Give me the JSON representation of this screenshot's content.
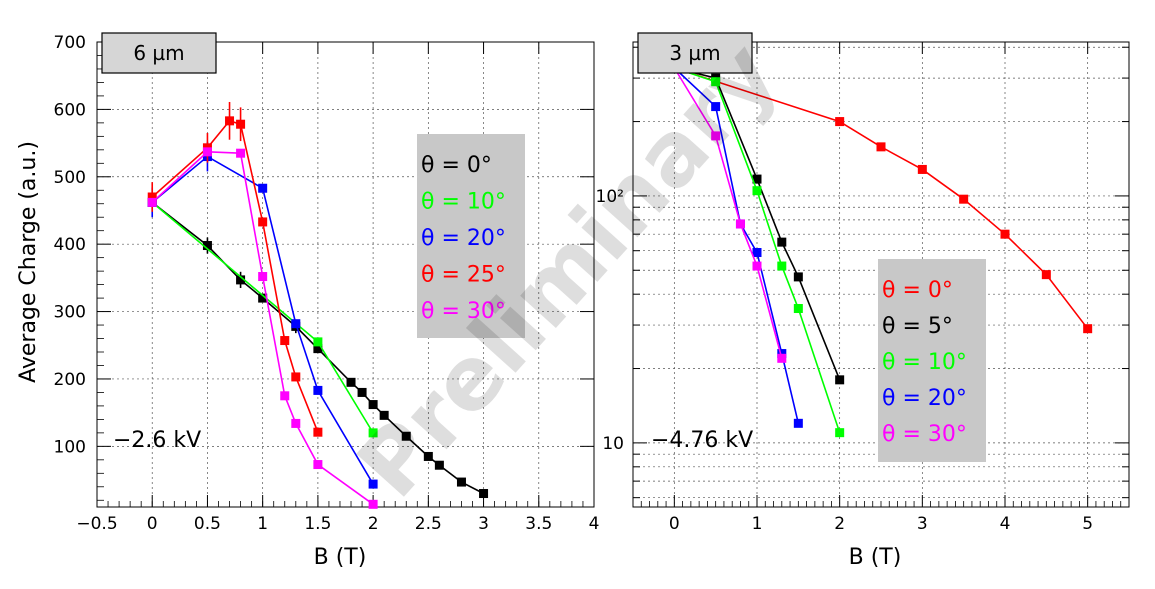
{
  "watermark": "Preliminary",
  "chart_data": [
    {
      "type": "line",
      "tag": "6 µm",
      "annotation": "−2.6 kV",
      "xlabel": "B (T)",
      "ylabel": "Average Charge (a.u.)",
      "xlim": [
        -0.5,
        4
      ],
      "ylim": [
        10,
        700
      ],
      "y_scale": "linear",
      "x_ticks": [
        "−0.5",
        "0",
        "0.5",
        "1",
        "1.5",
        "2",
        "2.5",
        "3",
        "3.5",
        "4"
      ],
      "y_ticks": [
        "100",
        "200",
        "300",
        "400",
        "500",
        "600",
        "700"
      ],
      "grid": true,
      "legend_position": "right",
      "series": [
        {
          "name": "θ = 0°",
          "color": "#000000",
          "x": [
            0,
            0.5,
            0.8,
            1.0,
            1.3,
            1.5,
            1.8,
            1.9,
            2.0,
            2.1,
            2.3,
            2.5,
            2.6,
            2.8,
            3.0
          ],
          "y": [
            462,
            398,
            347,
            320,
            278,
            245,
            195,
            180,
            162,
            146,
            115,
            85,
            72,
            47,
            30
          ],
          "err": [
            0,
            12,
            12,
            0,
            10,
            0,
            0,
            0,
            0,
            0,
            0,
            0,
            0,
            0,
            0
          ]
        },
        {
          "name": "θ = 10°",
          "color": "#00ff00",
          "x": [
            0,
            1.5,
            2.0
          ],
          "y": [
            462,
            255,
            120
          ],
          "err": [
            0,
            0,
            0
          ]
        },
        {
          "name": "θ = 20°",
          "color": "#0000ff",
          "x": [
            0,
            0.5,
            1.0,
            1.3,
            1.5,
            2.0
          ],
          "y": [
            462,
            530,
            483,
            282,
            183,
            44
          ],
          "err": [
            22,
            22,
            0,
            0,
            0,
            0
          ]
        },
        {
          "name": "θ = 25°",
          "color": "#ff0000",
          "x": [
            0,
            0.5,
            0.7,
            0.8,
            1.0,
            1.2,
            1.3,
            1.5
          ],
          "y": [
            470,
            543,
            583,
            578,
            433,
            257,
            203,
            121
          ],
          "err": [
            22,
            22,
            28,
            25,
            0,
            0,
            0,
            0
          ]
        },
        {
          "name": "θ = 30°",
          "color": "#ff00ff",
          "x": [
            0,
            0.5,
            0.8,
            1.0,
            1.2,
            1.3,
            1.5,
            2.0
          ],
          "y": [
            462,
            537,
            535,
            352,
            175,
            134,
            73,
            14
          ],
          "err": [
            0,
            0,
            0,
            0,
            0,
            0,
            0,
            0
          ]
        }
      ]
    },
    {
      "type": "line",
      "tag": "3 µm",
      "annotation": "−4.76 kV",
      "xlabel": "B (T)",
      "ylabel": "",
      "xlim": [
        -0.5,
        5.5
      ],
      "ylim": [
        5.5,
        420
      ],
      "y_scale": "log",
      "x_ticks": [
        "0",
        "1",
        "2",
        "3",
        "4",
        "5"
      ],
      "y_ticks": [
        "10",
        "10²"
      ],
      "grid": true,
      "legend_position": "right",
      "series": [
        {
          "name": "θ = 0°",
          "color": "#ff0000",
          "x": [
            0,
            2.0,
            2.5,
            3.0,
            3.5,
            4.0,
            4.5,
            5.0
          ],
          "y": [
            330,
            200,
            158,
            128,
            97,
            70,
            48,
            29
          ]
        },
        {
          "name": "θ = 5°",
          "color": "#000000",
          "x": [
            0,
            0.5,
            1.0,
            1.3,
            1.5,
            2.0
          ],
          "y": [
            330,
            300,
            117,
            65,
            47,
            18
          ]
        },
        {
          "name": "θ = 10°",
          "color": "#00ff00",
          "x": [
            0,
            0.5,
            1.0,
            1.3,
            1.5,
            2.0
          ],
          "y": [
            330,
            290,
            105,
            52,
            35,
            11
          ]
        },
        {
          "name": "θ = 20°",
          "color": "#0000ff",
          "x": [
            0,
            0.5,
            0.8,
            1.0,
            1.3,
            1.5
          ],
          "y": [
            330,
            230,
            77,
            59,
            23,
            12
          ]
        },
        {
          "name": "θ = 30°",
          "color": "#ff00ff",
          "x": [
            0,
            0.5,
            0.8,
            1.0,
            1.3
          ],
          "y": [
            330,
            175,
            77,
            52,
            22
          ]
        }
      ]
    }
  ]
}
